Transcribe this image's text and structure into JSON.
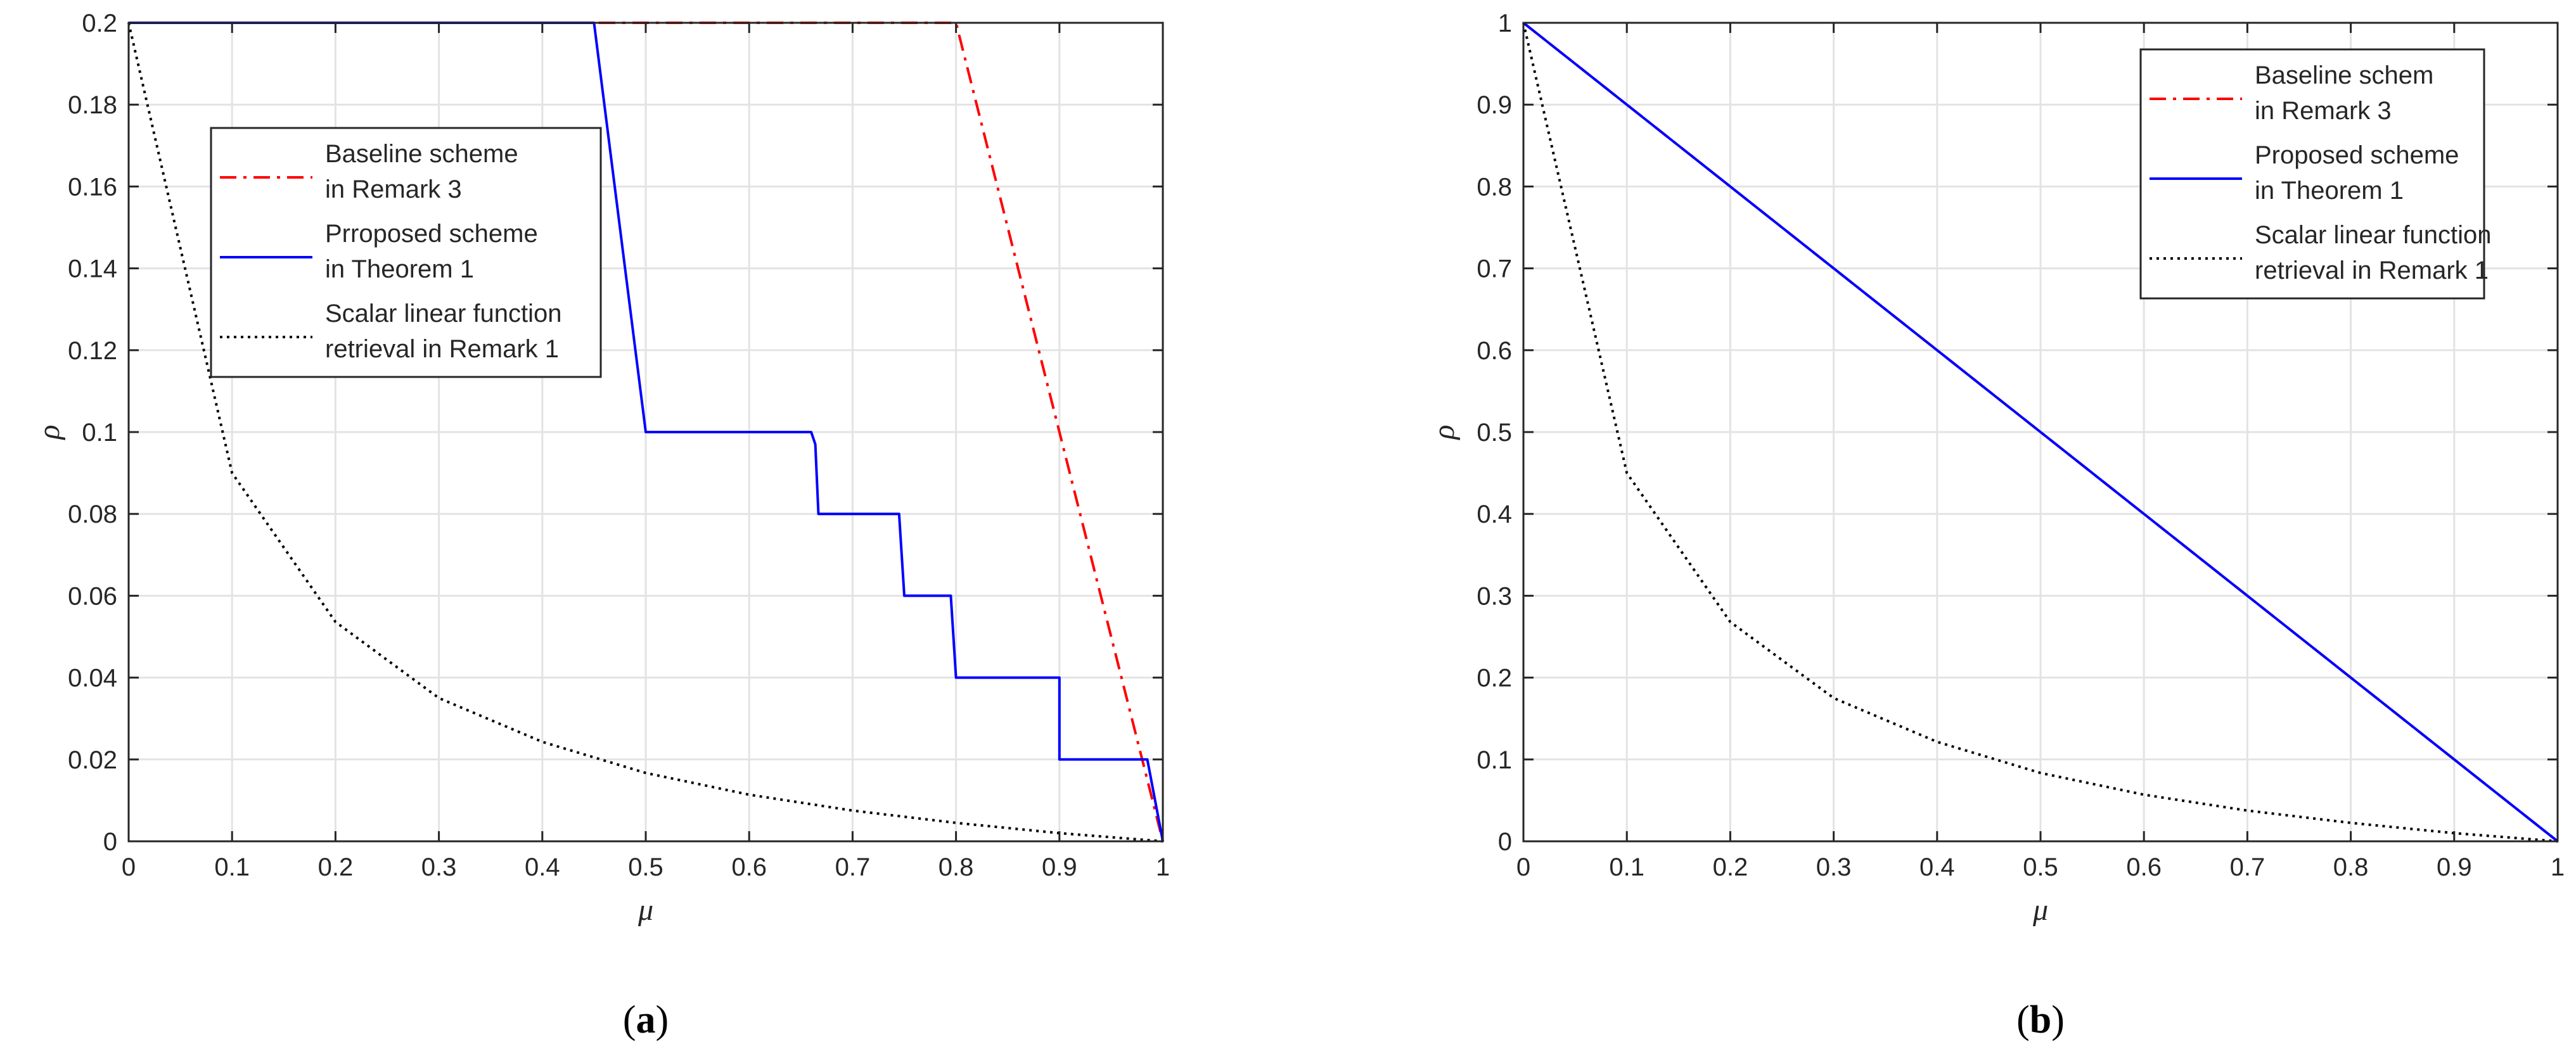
{
  "chart_data": [
    {
      "type": "line",
      "caption": "(a)",
      "caption_letter": "a",
      "xlabel": "μ",
      "ylabel": "ρ",
      "xlim": [
        0,
        1
      ],
      "ylim": [
        0,
        0.2
      ],
      "xticks": [
        0,
        0.1,
        0.2,
        0.3,
        0.4,
        0.5,
        0.6,
        0.7,
        0.8,
        0.9,
        1
      ],
      "xtick_labels": [
        "0",
        "0.1",
        "0.2",
        "0.3",
        "0.4",
        "0.5",
        "0.6",
        "0.7",
        "0.8",
        "0.9",
        "1"
      ],
      "yticks": [
        0,
        0.02,
        0.04,
        0.06,
        0.08,
        0.1,
        0.12,
        0.14,
        0.16,
        0.18,
        0.2
      ],
      "ytick_labels": [
        "0",
        "0.02",
        "0.04",
        "0.06",
        "0.08",
        "0.1",
        "0.12",
        "0.14",
        "0.16",
        "0.18",
        "0.2"
      ],
      "grid": true,
      "legend_position": "upper-left",
      "series": [
        {
          "name_lines": [
            "Baseline scheme",
            "in Remark 3"
          ],
          "color": "#ff0000",
          "style": "dashdot",
          "points": [
            [
              0,
              0.2
            ],
            [
              0.8,
              0.2
            ],
            [
              0.9,
              0.1
            ],
            [
              0.98,
              0.02
            ],
            [
              1,
              0
            ]
          ]
        },
        {
          "name_lines": [
            "Prroposed scheme",
            "in Theorem 1"
          ],
          "color": "#0000ff",
          "style": "solid",
          "points": [
            [
              0,
              0.2
            ],
            [
              0.45,
              0.2
            ],
            [
              0.5,
              0.1
            ],
            [
              0.66,
              0.1
            ],
            [
              0.664,
              0.097
            ],
            [
              0.667,
              0.08
            ],
            [
              0.745,
              0.08
            ],
            [
              0.75,
              0.06
            ],
            [
              0.795,
              0.06
            ],
            [
              0.8,
              0.04
            ],
            [
              0.9,
              0.04
            ],
            [
              0.9,
              0.02
            ],
            [
              0.985,
              0.02
            ],
            [
              1,
              0
            ]
          ]
        },
        {
          "name_lines": [
            "Scalar linear function",
            "retrieval in Remark 1"
          ],
          "color": "#000000",
          "style": "dotted",
          "points": [
            [
              0,
              0.2
            ],
            [
              0.1,
              0.09
            ],
            [
              0.2,
              0.0536
            ],
            [
              0.3,
              0.035
            ],
            [
              0.4,
              0.0243
            ],
            [
              0.5,
              0.0167
            ],
            [
              0.6,
              0.0114
            ],
            [
              0.7,
              0.0075
            ],
            [
              0.8,
              0.0045
            ],
            [
              0.9,
              0.002
            ],
            [
              1,
              0
            ]
          ]
        }
      ]
    },
    {
      "type": "line",
      "caption": "(b)",
      "caption_letter": "b",
      "xlabel": "μ",
      "ylabel": "ρ",
      "xlim": [
        0,
        1
      ],
      "ylim": [
        0,
        1
      ],
      "xticks": [
        0,
        0.1,
        0.2,
        0.3,
        0.4,
        0.5,
        0.6,
        0.7,
        0.8,
        0.9,
        1
      ],
      "xtick_labels": [
        "0",
        "0.1",
        "0.2",
        "0.3",
        "0.4",
        "0.5",
        "0.6",
        "0.7",
        "0.8",
        "0.9",
        "1"
      ],
      "yticks": [
        0,
        0.1,
        0.2,
        0.3,
        0.4,
        0.5,
        0.6,
        0.7,
        0.8,
        0.9,
        1
      ],
      "ytick_labels": [
        "0",
        "0.1",
        "0.2",
        "0.3",
        "0.4",
        "0.5",
        "0.6",
        "0.7",
        "0.8",
        "0.9",
        "1"
      ],
      "grid": true,
      "legend_position": "upper-right",
      "series": [
        {
          "name_lines": [
            "Baseline schem",
            "in Remark 3"
          ],
          "color": "#ff0000",
          "style": "dashdot",
          "points": [
            [
              0,
              1
            ],
            [
              1,
              0
            ]
          ]
        },
        {
          "name_lines": [
            "Proposed scheme",
            "in Theorem 1"
          ],
          "color": "#0000ff",
          "style": "solid",
          "points": [
            [
              0,
              1
            ],
            [
              1,
              0
            ]
          ]
        },
        {
          "name_lines": [
            "Scalar linear function",
            "retrieval in Remark 1"
          ],
          "color": "#000000",
          "style": "dotted",
          "points": [
            [
              0,
              1
            ],
            [
              0.1,
              0.45
            ],
            [
              0.2,
              0.268
            ],
            [
              0.3,
              0.175
            ],
            [
              0.4,
              0.1215
            ],
            [
              0.5,
              0.0835
            ],
            [
              0.6,
              0.057
            ],
            [
              0.7,
              0.0375
            ],
            [
              0.8,
              0.0225
            ],
            [
              0.9,
              0.01
            ],
            [
              1,
              0
            ]
          ]
        }
      ]
    }
  ]
}
